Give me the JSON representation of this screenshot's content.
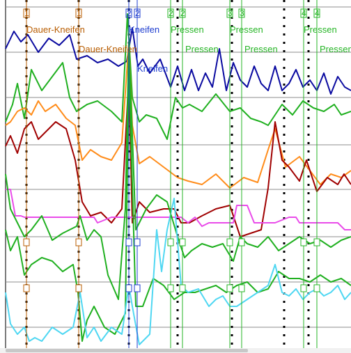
{
  "chart_data": {
    "type": "line",
    "xlim": [
      0,
      504
    ],
    "ylim": [
      0,
      500
    ],
    "grid": true,
    "hlines": [
      10,
      75,
      140,
      208,
      272,
      340,
      405,
      470
    ],
    "dotted_vlines": [
      38,
      113,
      185,
      255,
      333,
      408,
      443
    ],
    "markers": [
      {
        "x": 38,
        "number": "1",
        "color": "#b85c00",
        "labels": [
          {
            "text": "Dauer-Kneifen",
            "dx": 0,
            "y": 47
          }
        ]
      },
      {
        "x": 113,
        "number": "1",
        "color": "#b85c00",
        "labels": [
          {
            "text": "Dauer-Kneifen",
            "dx": 0,
            "y": 75
          }
        ]
      },
      {
        "x": 185,
        "number": "2",
        "color": "#1d3ccf",
        "labels": [
          {
            "text": "Kneifen",
            "dx": 0,
            "y": 47
          }
        ]
      },
      {
        "x": 197,
        "number": "2",
        "color": "#1d3ccf",
        "labels": [
          {
            "text": "Kneifen",
            "dx": 0,
            "y": 103
          }
        ]
      },
      {
        "x": 245,
        "number": "2",
        "color": "#26b526",
        "labels": [
          {
            "text": "Pressen",
            "dx": 0,
            "y": 47
          }
        ]
      },
      {
        "x": 262,
        "number": "2",
        "color": "#26b526",
        "labels": [
          {
            "text": "Pressen",
            "dx": 4,
            "y": 75
          }
        ]
      },
      {
        "x": 330,
        "number": "3",
        "color": "#26b526",
        "labels": [
          {
            "text": "Pressen",
            "dx": 0,
            "y": 47
          }
        ]
      },
      {
        "x": 347,
        "number": "3",
        "color": "#26b526",
        "labels": [
          {
            "text": "Pressen",
            "dx": 4,
            "y": 75
          }
        ]
      },
      {
        "x": 436,
        "number": "4",
        "color": "#26b526",
        "labels": [
          {
            "text": "Pressen",
            "dx": 0,
            "y": 47
          }
        ]
      },
      {
        "x": 455,
        "number": "4",
        "color": "#26b526",
        "labels": [
          {
            "text": "Pressen",
            "dx": 4,
            "y": 75
          }
        ]
      }
    ],
    "series": [
      {
        "color": "#0a0aa0",
        "x": [
          8,
          20,
          30,
          40,
          55,
          70,
          85,
          100,
          110,
          125,
          140,
          155,
          170,
          182,
          190,
          198,
          205,
          215,
          230,
          245,
          255,
          265,
          275,
          285,
          295,
          305,
          315,
          325,
          335,
          345,
          355,
          365,
          375,
          385,
          395,
          405,
          415,
          425,
          435,
          445,
          455,
          465,
          475,
          485,
          495,
          504
        ],
        "y": [
          70,
          45,
          60,
          50,
          75,
          55,
          65,
          50,
          85,
          80,
          90,
          85,
          95,
          88,
          40,
          95,
          85,
          105,
          85,
          125,
          95,
          130,
          100,
          130,
          105,
          125,
          70,
          130,
          90,
          115,
          125,
          95,
          120,
          130,
          95,
          130,
          120,
          100,
          125,
          115,
          130,
          105,
          135,
          110,
          125,
          130
        ]
      },
      {
        "color": "#20b020",
        "x": [
          8,
          18,
          25,
          35,
          45,
          60,
          75,
          90,
          100,
          110,
          125,
          140,
          160,
          175,
          183,
          190,
          200,
          210,
          225,
          240,
          252,
          262,
          272,
          290,
          310,
          330,
          345,
          360,
          375,
          385,
          395,
          405,
          420,
          435,
          450,
          465,
          480,
          490,
          504
        ],
        "y": [
          175,
          150,
          120,
          170,
          100,
          130,
          110,
          90,
          140,
          160,
          150,
          145,
          160,
          175,
          20,
          140,
          175,
          165,
          170,
          200,
          140,
          155,
          150,
          160,
          135,
          160,
          155,
          170,
          175,
          180,
          165,
          150,
          165,
          145,
          155,
          160,
          150,
          165,
          160
        ]
      },
      {
        "color": "#ff8c1a",
        "x": [
          8,
          15,
          25,
          35,
          45,
          55,
          65,
          80,
          95,
          108,
          118,
          130,
          145,
          160,
          175,
          185,
          190,
          200,
          215,
          235,
          255,
          270,
          290,
          310,
          330,
          350,
          370,
          385,
          395,
          410,
          430,
          445,
          460,
          475,
          490,
          504
        ],
        "y": [
          180,
          175,
          160,
          155,
          165,
          145,
          160,
          150,
          170,
          180,
          230,
          215,
          225,
          230,
          205,
          60,
          180,
          235,
          225,
          240,
          255,
          260,
          265,
          250,
          270,
          255,
          262,
          215,
          185,
          240,
          225,
          245,
          265,
          250,
          255,
          245
        ]
      },
      {
        "color": "#a00000",
        "x": [
          8,
          15,
          25,
          35,
          45,
          55,
          65,
          80,
          95,
          108,
          118,
          130,
          145,
          160,
          175,
          185,
          190,
          200,
          215,
          235,
          250,
          260,
          272,
          290,
          310,
          330,
          345,
          360,
          375,
          385,
          395,
          405,
          415,
          430,
          440,
          455,
          470,
          485,
          494,
          504
        ],
        "y": [
          210,
          195,
          220,
          185,
          175,
          200,
          190,
          175,
          185,
          230,
          290,
          310,
          305,
          320,
          300,
          110,
          320,
          290,
          305,
          300,
          300,
          320,
          320,
          310,
          300,
          295,
          340,
          335,
          330,
          270,
          175,
          230,
          240,
          260,
          230,
          275,
          255,
          265,
          250,
          265
        ]
      },
      {
        "color": "#e94be9",
        "x": [
          8,
          15,
          22,
          30,
          35,
          50,
          70,
          90,
          110,
          125,
          135,
          140,
          160,
          180,
          200,
          220,
          240,
          260,
          270,
          280,
          290,
          300,
          320,
          335,
          340,
          355,
          365,
          375,
          395,
          415,
          425,
          430,
          450,
          470,
          485,
          495,
          504
        ],
        "y": [
          272,
          272,
          310,
          310,
          312,
          312,
          312,
          312,
          312,
          312,
          312,
          320,
          312,
          312,
          312,
          312,
          312,
          312,
          320,
          312,
          325,
          320,
          320,
          320,
          295,
          295,
          320,
          320,
          320,
          312,
          312,
          320,
          320,
          320,
          320,
          330,
          330
        ]
      },
      {
        "color": "#20b020",
        "x": [
          8,
          15,
          25,
          35,
          45,
          60,
          75,
          90,
          100,
          110,
          115,
          125,
          135,
          145,
          155,
          170,
          180,
          185,
          195,
          210,
          225,
          240,
          255,
          265,
          275,
          290,
          305,
          320,
          335,
          345,
          355,
          370,
          385,
          400,
          415,
          430,
          445,
          460,
          475,
          490,
          504
        ],
        "y": [
          250,
          300,
          320,
          340,
          330,
          310,
          345,
          335,
          330,
          325,
          310,
          345,
          330,
          340,
          395,
          430,
          300,
          60,
          330,
          300,
          280,
          290,
          340,
          370,
          360,
          350,
          355,
          350,
          375,
          340,
          350,
          355,
          340,
          360,
          350,
          340,
          350,
          345,
          355,
          345,
          340
        ]
      },
      {
        "color": "#20b020",
        "x": [
          8,
          15,
          25,
          35,
          45,
          60,
          75,
          90,
          105,
          112,
          118,
          125,
          135,
          150,
          165,
          180,
          185,
          195,
          205,
          220,
          235,
          250,
          265,
          280,
          295,
          310,
          325,
          340,
          355,
          370,
          385,
          400,
          415,
          430,
          445,
          460,
          475,
          490,
          504
        ],
        "y": [
          330,
          360,
          340,
          395,
          380,
          370,
          375,
          390,
          380,
          420,
          490,
          460,
          440,
          470,
          480,
          450,
          90,
          440,
          440,
          400,
          410,
          430,
          420,
          420,
          415,
          410,
          420,
          410,
          405,
          420,
          415,
          390,
          400,
          400,
          405,
          395,
          405,
          400,
          410
        ]
      },
      {
        "color": "#4fd7f2",
        "x": [
          8,
          15,
          25,
          35,
          42,
          50,
          60,
          75,
          90,
          105,
          115,
          125,
          135,
          145,
          160,
          175,
          185,
          190,
          200,
          215,
          225,
          232,
          240,
          250,
          260,
          270,
          285,
          300,
          310,
          320,
          330,
          340,
          355,
          370,
          385,
          395,
          405,
          415,
          425,
          435,
          445,
          455,
          465,
          475,
          485,
          495,
          504
        ],
        "y": [
          420,
          465,
          480,
          470,
          490,
          485,
          490,
          470,
          480,
          470,
          420,
          485,
          470,
          490,
          470,
          480,
          410,
          440,
          495,
          480,
          330,
          390,
          330,
          285,
          410,
          420,
          415,
          440,
          430,
          425,
          440,
          440,
          430,
          420,
          410,
          380,
          420,
          425,
          415,
          430,
          420,
          415,
          425,
          420,
          410,
          430,
          420
        ]
      }
    ]
  }
}
